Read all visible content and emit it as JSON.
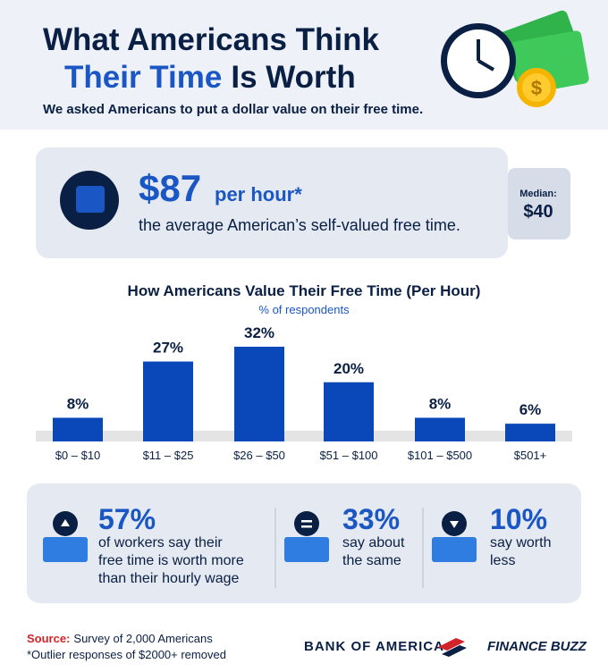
{
  "header": {
    "title_line1": "What Americans Think",
    "title_highlight": "Their Time",
    "title_rest": "Is Worth",
    "subtitle": "We asked Americans to put a dollar value on their free time."
  },
  "callout": {
    "amount": "$87",
    "unit": "per hour*",
    "text": "the average American’s self-valued free time.",
    "median_label": "Median:",
    "median_value": "$40"
  },
  "chart_data": {
    "type": "bar",
    "title": "How Americans Value Their Free Time (Per Hour)",
    "subtitle": "% of respondents",
    "categories": [
      "$0 – $10",
      "$11 – $25",
      "$26 – $50",
      "$51 – $100",
      "$101 – $500",
      "$501+"
    ],
    "values": [
      8,
      27,
      32,
      20,
      8,
      6
    ],
    "value_labels": [
      "8%",
      "27%",
      "32%",
      "20%",
      "8%",
      "6%"
    ],
    "color": "#0a47b8"
  },
  "stats": [
    {
      "value": "57%",
      "lines": [
        "of workers say their",
        "free time is worth more",
        "than their hourly wage"
      ]
    },
    {
      "value": "33%",
      "lines": [
        "say about",
        "the same"
      ]
    },
    {
      "value": "10%",
      "lines": [
        "say worth",
        "less"
      ]
    }
  ],
  "footer": {
    "source_label": "Source:",
    "source_text": "Survey of 2,000 Americans",
    "note": "*Outlier responses of $2000+ removed",
    "logo1": "BANK OF AMERICA",
    "logo2": "FINANCE BUZZ"
  }
}
